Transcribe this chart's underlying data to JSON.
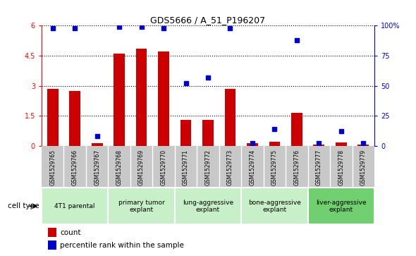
{
  "title": "GDS5666 / A_51_P196207",
  "samples": [
    "GSM1529765",
    "GSM1529766",
    "GSM1529767",
    "GSM1529768",
    "GSM1529769",
    "GSM1529770",
    "GSM1529771",
    "GSM1529772",
    "GSM1529773",
    "GSM1529774",
    "GSM1529775",
    "GSM1529776",
    "GSM1529777",
    "GSM1529778",
    "GSM1529779"
  ],
  "counts": [
    2.85,
    2.75,
    0.15,
    4.6,
    4.85,
    4.7,
    1.3,
    1.3,
    2.85,
    0.12,
    0.22,
    1.65,
    0.07,
    0.18,
    0.07
  ],
  "percentiles": [
    98,
    98,
    8,
    99,
    99,
    98,
    52,
    57,
    98,
    2,
    14,
    88,
    2,
    12,
    2
  ],
  "cell_groups": [
    {
      "label": "4T1 parental",
      "start": 0,
      "end": 3,
      "color": "#c8f0c8"
    },
    {
      "label": "primary tumor\nexplant",
      "start": 3,
      "end": 6,
      "color": "#c8f0c8"
    },
    {
      "label": "lung-aggressive\nexplant",
      "start": 6,
      "end": 9,
      "color": "#c8f0c8"
    },
    {
      "label": "bone-aggressive\nexplant",
      "start": 9,
      "end": 12,
      "color": "#c8f0c8"
    },
    {
      "label": "liver-aggressive\nexplant",
      "start": 12,
      "end": 15,
      "color": "#70d070"
    }
  ],
  "bar_color": "#cc0000",
  "dot_color": "#0000cc",
  "ylim_left": [
    0,
    6
  ],
  "ylim_right": [
    0,
    100
  ],
  "yticks_left": [
    0,
    1.5,
    3.0,
    4.5,
    6.0
  ],
  "yticks_right": [
    0,
    25,
    50,
    75,
    100
  ],
  "grid_color": "#000000",
  "bg_color": "#ffffff",
  "sample_bg_color": "#c8c8c8",
  "group_bg_color": "#c8f0c8",
  "cell_type_label": "cell type"
}
